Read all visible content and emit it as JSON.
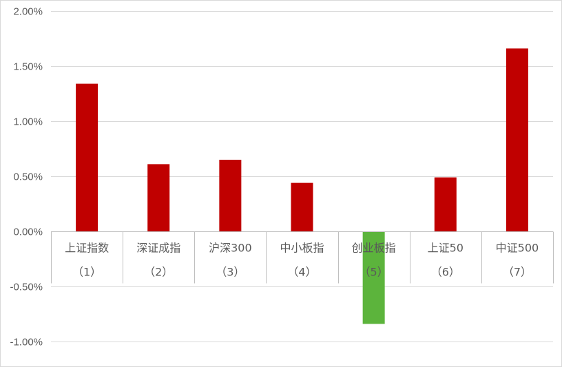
{
  "chart_data": {
    "type": "bar",
    "title": "",
    "xlabel": "",
    "ylabel": "",
    "ylim": [
      -1.0,
      2.0
    ],
    "y_ticks": [
      "2.00%",
      "1.50%",
      "1.00%",
      "0.50%",
      "0.00%",
      "-0.50%",
      "-1.00%"
    ],
    "grid": true,
    "legend": "none",
    "categories": [
      {
        "name": "上证指数",
        "index": "（1）"
      },
      {
        "name": "深证成指",
        "index": "（2）"
      },
      {
        "name": "沪深300",
        "index": "（3）"
      },
      {
        "name": "中小板指",
        "index": "（4）"
      },
      {
        "name": "创业板指",
        "index": "（5）"
      },
      {
        "name": "上证50",
        "index": "（6）"
      },
      {
        "name": "中证500",
        "index": "（7）"
      }
    ],
    "values": [
      1.34,
      0.61,
      0.65,
      0.44,
      -0.84,
      0.49,
      1.66
    ],
    "colors": {
      "positive": "#c00000",
      "negative": "#5cb43c",
      "grid": "#d9d9d9",
      "axis": "#bfbfbf",
      "text": "#595959"
    }
  }
}
